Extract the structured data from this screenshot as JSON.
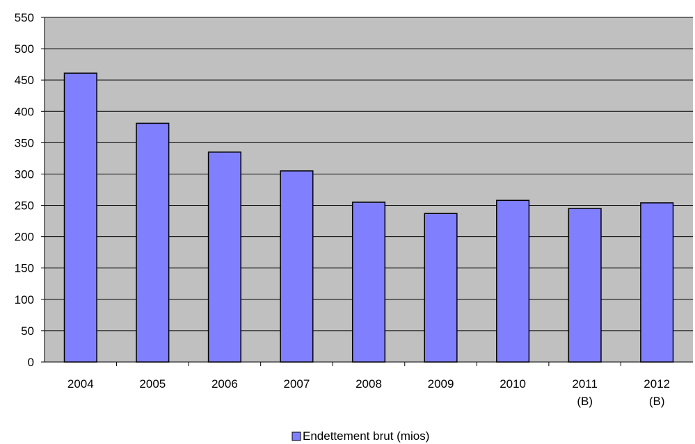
{
  "chart_data": {
    "type": "bar",
    "title": "",
    "xlabel": "",
    "ylabel": "",
    "categories": [
      [
        "2004"
      ],
      [
        "2005"
      ],
      [
        "2006"
      ],
      [
        "2007"
      ],
      [
        "2008"
      ],
      [
        "2009"
      ],
      [
        "2010"
      ],
      [
        "2011",
        "(B)"
      ],
      [
        "2012",
        "(B)"
      ]
    ],
    "series": [
      {
        "name": "Endettement brut (mios)",
        "color": "#8080ff",
        "values": [
          461,
          381,
          335,
          305,
          255,
          237,
          258,
          245,
          254
        ]
      }
    ],
    "ylim": [
      0,
      550
    ],
    "yticks": [
      0,
      50,
      100,
      150,
      200,
      250,
      300,
      350,
      400,
      450,
      500,
      550
    ],
    "grid": true,
    "plot_background": "#c0c0c0",
    "legend_position": "bottom"
  }
}
